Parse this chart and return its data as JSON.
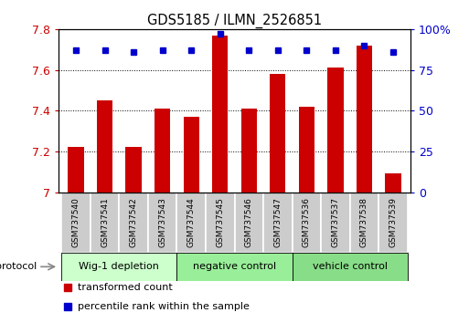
{
  "title": "GDS5185 / ILMN_2526851",
  "samples": [
    "GSM737540",
    "GSM737541",
    "GSM737542",
    "GSM737543",
    "GSM737544",
    "GSM737545",
    "GSM737546",
    "GSM737547",
    "GSM737536",
    "GSM737537",
    "GSM737538",
    "GSM737539"
  ],
  "transformed_count": [
    7.22,
    7.45,
    7.22,
    7.41,
    7.37,
    7.77,
    7.41,
    7.58,
    7.42,
    7.61,
    7.72,
    7.09
  ],
  "percentile_rank": [
    87,
    87,
    86,
    87,
    87,
    97,
    87,
    87,
    87,
    87,
    90,
    86
  ],
  "ylim_left": [
    7.0,
    7.8
  ],
  "ylim_right": [
    0,
    100
  ],
  "yticks_left": [
    7.0,
    7.2,
    7.4,
    7.6,
    7.8
  ],
  "yticks_right": [
    0,
    25,
    50,
    75,
    100
  ],
  "bar_color": "#cc0000",
  "dot_color": "#0000cc",
  "groups": [
    {
      "label": "Wig-1 depletion",
      "indices": [
        0,
        1,
        2,
        3
      ]
    },
    {
      "label": "negative control",
      "indices": [
        4,
        5,
        6,
        7
      ]
    },
    {
      "label": "vehicle control",
      "indices": [
        8,
        9,
        10,
        11
      ]
    }
  ],
  "group_colors": [
    "#ccffcc",
    "#99ee99",
    "#88dd88"
  ],
  "x_label_bg": "#cccccc",
  "bar_color_legend": "#cc0000",
  "dot_color_legend": "#0000cc",
  "legend_text_red": "transformed count",
  "legend_text_blue": "percentile rank within the sample",
  "protocol_label": "protocol",
  "fig_bg": "#ffffff",
  "fig_width": 5.13,
  "fig_height": 3.54,
  "dpi": 100
}
